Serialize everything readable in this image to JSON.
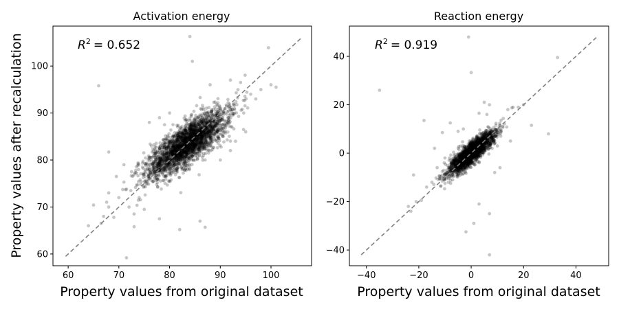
{
  "figure": {
    "ylabel": "Property values after recalculation",
    "xlabel": "Property values from original dataset"
  },
  "chart_data": [
    {
      "type": "scatter",
      "title": "Activation energy",
      "annotation_label": "R",
      "annotation_exponent": "2",
      "annotation_value": "= 0.652",
      "xlim": [
        57,
        108
      ],
      "ylim": [
        57.5,
        108.5
      ],
      "xticks": [
        60,
        70,
        80,
        90,
        100
      ],
      "yticks": [
        60,
        70,
        80,
        90,
        100
      ],
      "reference_line": {
        "from": [
          59.5,
          59.5
        ],
        "to": [
          106,
          106
        ],
        "style": "dashed",
        "color": "#808080"
      },
      "point_color": "#000000",
      "point_alpha": 0.22,
      "cloud": {
        "center": [
          83.5,
          83.5
        ],
        "major_axis": [
          1,
          0.85
        ],
        "sd_major": 5.0,
        "sd_minor": 1.7,
        "count": 2600
      },
      "outliers": [
        [
          66,
          95.8
        ],
        [
          84,
          106.3
        ],
        [
          99.5,
          103.9
        ],
        [
          84.5,
          101
        ],
        [
          68,
          81.7
        ],
        [
          71,
          79
        ],
        [
          71,
          75.3
        ],
        [
          71.5,
          59.2
        ],
        [
          65,
          70.4
        ],
        [
          67,
          68
        ],
        [
          69,
          67.8
        ],
        [
          73,
          65.8
        ],
        [
          78,
          67.5
        ],
        [
          82,
          65.2
        ],
        [
          86,
          67
        ],
        [
          87,
          65.7
        ],
        [
          68,
          73
        ],
        [
          72,
          70
        ],
        [
          74,
          72
        ],
        [
          66.5,
          66.5
        ],
        [
          96,
          94
        ],
        [
          97,
          93
        ],
        [
          98,
          95
        ],
        [
          100,
          96
        ],
        [
          101,
          95.5
        ],
        [
          93,
          84
        ],
        [
          95,
          86
        ],
        [
          92,
          82
        ],
        [
          90,
          80
        ],
        [
          76,
          88
        ],
        [
          78,
          89
        ],
        [
          80,
          90
        ],
        [
          79,
          87.5
        ],
        [
          70,
          72
        ],
        [
          73,
          68.5
        ],
        [
          75,
          69.5
        ],
        [
          68,
          70
        ],
        [
          88,
          96
        ],
        [
          92,
          97
        ],
        [
          94,
          96.5
        ],
        [
          64,
          66
        ],
        [
          69.5,
          76.5
        ],
        [
          72.5,
          77.5
        ]
      ]
    },
    {
      "type": "scatter",
      "title": "Reaction energy",
      "annotation_label": "R",
      "annotation_exponent": "2",
      "annotation_value": "= 0.919",
      "xlim": [
        -46.5,
        52.5
      ],
      "ylim": [
        -46.5,
        52.5
      ],
      "xticks": [
        -40,
        -20,
        0,
        20,
        40
      ],
      "yticks": [
        -40,
        -20,
        0,
        20,
        40
      ],
      "reference_line": {
        "from": [
          -42,
          -42
        ],
        "to": [
          48,
          48
        ],
        "style": "dashed",
        "color": "#808080"
      },
      "point_color": "#000000",
      "point_alpha": 0.22,
      "cloud": {
        "center": [
          0,
          0
        ],
        "major_axis": [
          1,
          1
        ],
        "sd_major": 6.0,
        "sd_minor": 1.6,
        "count": 2200
      },
      "outliers": [
        [
          -35,
          26
        ],
        [
          -1,
          48
        ],
        [
          0,
          33.3
        ],
        [
          33,
          39.5
        ],
        [
          29.5,
          8
        ],
        [
          23,
          11.5
        ],
        [
          7,
          -42
        ],
        [
          7,
          -25
        ],
        [
          3,
          -21
        ],
        [
          1,
          -29
        ],
        [
          -2,
          -32.5
        ],
        [
          -22,
          -9
        ],
        [
          -18,
          13.5
        ],
        [
          -11,
          8.5
        ],
        [
          -8,
          12.5
        ],
        [
          5,
          21
        ],
        [
          7,
          20
        ],
        [
          3,
          16.5
        ],
        [
          6,
          16
        ],
        [
          -24,
          -22
        ],
        [
          -23,
          -24
        ],
        [
          -21,
          -20
        ],
        [
          -19,
          -19.5
        ],
        [
          -17,
          -14
        ],
        [
          -15,
          -12
        ],
        [
          12,
          11
        ],
        [
          14,
          18
        ],
        [
          16,
          19
        ],
        [
          18,
          19
        ],
        [
          20,
          20
        ],
        [
          -13,
          -6
        ],
        [
          -10,
          -2
        ],
        [
          8,
          2
        ],
        [
          10,
          3
        ],
        [
          -5,
          9
        ],
        [
          -3,
          10
        ],
        [
          11,
          -6
        ],
        [
          9,
          -8
        ],
        [
          -14,
          2
        ],
        [
          15,
          5
        ]
      ]
    }
  ]
}
